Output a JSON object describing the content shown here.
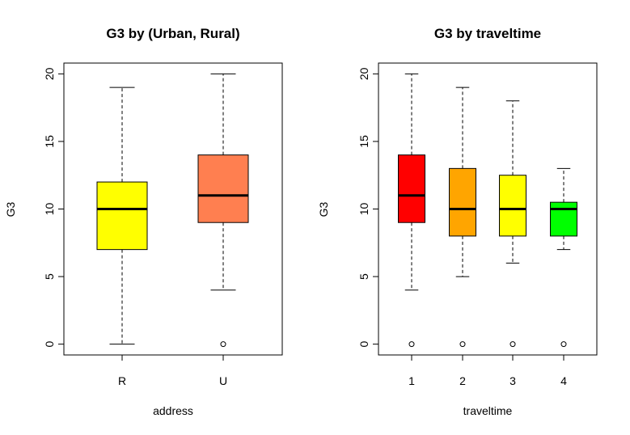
{
  "chart_data": [
    {
      "type": "box",
      "title": "G3 by (Urban, Rural)",
      "xlabel": "address",
      "ylabel": "G3",
      "ylim": [
        -0.8,
        20.8
      ],
      "yticks": [
        "0",
        "5",
        "10",
        "15",
        "20"
      ],
      "categories": [
        "R",
        "U"
      ],
      "boxes": [
        {
          "category": "R",
          "min": 0,
          "q1": 7,
          "median": 10,
          "q3": 12,
          "max": 19,
          "outliers": [],
          "color": "#FFFF00"
        },
        {
          "category": "U",
          "min": 4,
          "q1": 9,
          "median": 11,
          "q3": 14,
          "max": 20,
          "outliers": [
            0
          ],
          "color": "#FF7F50"
        }
      ]
    },
    {
      "type": "box",
      "title": "G3 by traveltime",
      "xlabel": "traveltime",
      "ylabel": "G3",
      "ylim": [
        -0.8,
        20.8
      ],
      "yticks": [
        "0",
        "5",
        "10",
        "15",
        "20"
      ],
      "categories": [
        "1",
        "2",
        "3",
        "4"
      ],
      "boxes": [
        {
          "category": "1",
          "min": 4,
          "q1": 9,
          "median": 11,
          "q3": 14,
          "max": 20,
          "outliers": [
            0
          ],
          "color": "#FF0000"
        },
        {
          "category": "2",
          "min": 5,
          "q1": 8,
          "median": 10,
          "q3": 13,
          "max": 19,
          "outliers": [
            0
          ],
          "color": "#FFA500"
        },
        {
          "category": "3",
          "min": 6,
          "q1": 8,
          "median": 10,
          "q3": 12.5,
          "max": 18,
          "outliers": [
            0
          ],
          "color": "#FFFF00"
        },
        {
          "category": "4",
          "min": 7,
          "q1": 8,
          "median": 10,
          "q3": 10.5,
          "max": 13,
          "outliers": [
            0
          ],
          "color": "#00FF00"
        }
      ]
    }
  ]
}
